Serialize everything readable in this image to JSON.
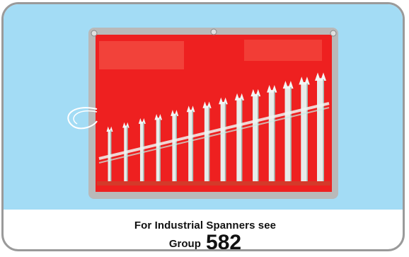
{
  "colors": {
    "background": "#a3dcf5",
    "frame": "#9a9a9a",
    "pouch": "#ee2020",
    "pouch_border": "#b9b9b9",
    "spanner": "#e8ecea"
  },
  "image": {
    "icon": "spanner-set-pouch-image"
  },
  "caption": {
    "line1": "For Industrial Spanners see",
    "group_label": "Group",
    "group_number": "582"
  }
}
